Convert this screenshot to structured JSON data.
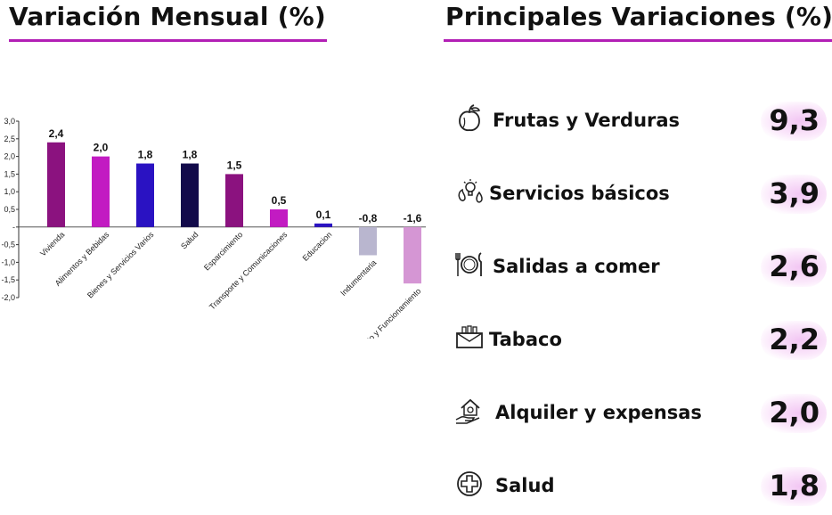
{
  "left_title": "Variación Mensual (%)",
  "right_title": "Principales Variaciones (%)",
  "colors": {
    "title_underline": "#b21fb5",
    "pill_glow": "#f2c6f3"
  },
  "chart_data": {
    "type": "bar",
    "categories": [
      "Vivienda",
      "Alimentos y Bebidas",
      "Bienes y Servicios Varios",
      "Salud",
      "Esparcimiento",
      "Transporte y Comunicaciones",
      "Educacion",
      "Indumentaria",
      "Equipamiento y Funcionamiento"
    ],
    "values": [
      2.4,
      2.0,
      1.8,
      1.8,
      1.5,
      0.5,
      0.1,
      -0.8,
      -1.6
    ],
    "value_labels": [
      "2,4",
      "2,0",
      "1,8",
      "1,8",
      "1,5",
      "0,5",
      "0,1",
      "-0,8",
      "-1,6"
    ],
    "bar_colors": [
      "#8b127f",
      "#c21bc2",
      "#2a12c2",
      "#120a4a",
      "#8b127f",
      "#c21bc2",
      "#2a12c2",
      "#b9b6cf",
      "#d596d4"
    ],
    "yticks": [
      "3,0",
      "2,5",
      "2,0",
      "1,5",
      "1,0",
      "0,5",
      "-",
      "-0,5",
      "-1,0",
      "-1,5",
      "-2,0"
    ],
    "ylim": [
      -2.0,
      3.0
    ],
    "grid": false,
    "title": "",
    "xlabel": "",
    "ylabel": ""
  },
  "variations": [
    {
      "label": "Frutas y Verduras",
      "value": "9,3",
      "icon": "fruits-icon"
    },
    {
      "label": "Servicios básicos",
      "value": "3,9",
      "icon": "utilities-icon"
    },
    {
      "label": "Salidas a comer",
      "value": "2,6",
      "icon": "dining-icon"
    },
    {
      "label": "Tabaco",
      "value": "2,2",
      "icon": "cigarette-pack-icon"
    },
    {
      "label": "Alquiler y expensas",
      "value": "2,0",
      "icon": "house-rent-icon"
    },
    {
      "label": "Salud",
      "value": "1,8",
      "icon": "health-cross-icon"
    }
  ]
}
